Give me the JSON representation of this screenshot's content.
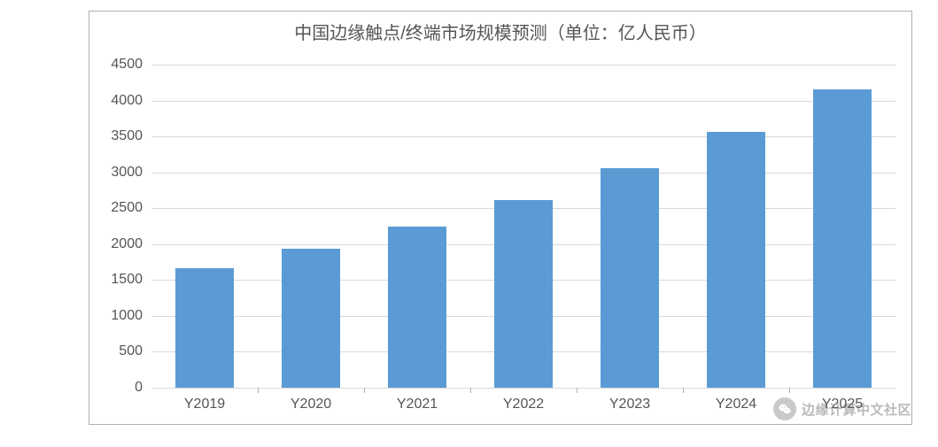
{
  "chart": {
    "type": "bar",
    "title": "中国边缘触点/终端市场规模预测（单位：亿人民币）",
    "title_fontsize": 20,
    "title_color": "#555555",
    "categories": [
      "Y2019",
      "Y2020",
      "Y2021",
      "Y2022",
      "Y2023",
      "Y2024",
      "Y2025"
    ],
    "values": [
      1660,
      1940,
      2240,
      2620,
      3060,
      3560,
      4160
    ],
    "bar_color": "#5b9bd5",
    "ylim": [
      0,
      4500
    ],
    "ytick_step": 500,
    "yticks": [
      "0",
      "500",
      "1000",
      "1500",
      "2000",
      "2500",
      "3000",
      "3500",
      "4000",
      "4500"
    ],
    "axis_label_fontsize": 16,
    "axis_label_color": "#555555",
    "grid_color": "#d9d9d9",
    "border_color": "#b0b0b0",
    "background_color": "#ffffff",
    "bar_width_ratio": 0.55
  },
  "watermark": {
    "text": "边缘计算中文社区",
    "icon": "wechat-icon"
  }
}
